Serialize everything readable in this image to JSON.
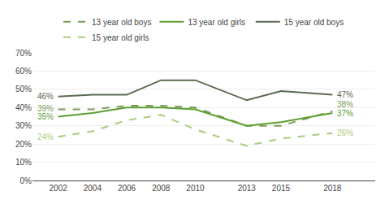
{
  "chart_data": {
    "type": "line",
    "x": [
      2002,
      2004,
      2006,
      2008,
      2010,
      2013,
      2015,
      2018
    ],
    "series": [
      {
        "name": "13 year old boys",
        "color": "#7a9a5a",
        "line_style": "dashed",
        "values": [
          39,
          39,
          41,
          41,
          40,
          30,
          30,
          38
        ],
        "value_labels": [
          "39%",
          null,
          null,
          null,
          null,
          null,
          null,
          "38%"
        ]
      },
      {
        "name": "13 year old girls",
        "color": "#5a9e30",
        "line_style": "solid",
        "values": [
          35,
          37,
          40,
          40,
          39,
          30,
          32,
          37
        ],
        "value_labels": [
          "35%",
          null,
          null,
          null,
          null,
          null,
          null,
          "37%"
        ]
      },
      {
        "name": "15 year old boys",
        "color": "#5a6a50",
        "line_style": "solid",
        "values": [
          46,
          47,
          47,
          55,
          55,
          44,
          49,
          47
        ],
        "value_labels": [
          "46%",
          null,
          null,
          null,
          null,
          null,
          null,
          "47%"
        ]
      },
      {
        "name": "15 year old girls",
        "color": "#a8cc80",
        "line_style": "dashed",
        "values": [
          24,
          27,
          33,
          36,
          28,
          19,
          23,
          26
        ],
        "value_labels": [
          "24%",
          null,
          null,
          null,
          null,
          null,
          null,
          "26%"
        ]
      }
    ],
    "xlim": [
      2000.5,
      2020.5
    ],
    "xticks": [
      2002,
      2004,
      2006,
      2008,
      2010,
      2013,
      2015,
      2018
    ],
    "ylim": [
      0,
      70
    ],
    "yticks": [
      {
        "value": 0,
        "label": "0%"
      },
      {
        "value": 10,
        "label": "10%"
      },
      {
        "value": 20,
        "label": "20%"
      },
      {
        "value": 30,
        "label": "30%"
      },
      {
        "value": 40,
        "label": "40%"
      },
      {
        "value": 50,
        "label": "50%"
      },
      {
        "value": 60,
        "label": "60%"
      },
      {
        "value": 70,
        "label": "70%"
      }
    ],
    "grid": true,
    "legend": "top",
    "data_labels": true
  }
}
